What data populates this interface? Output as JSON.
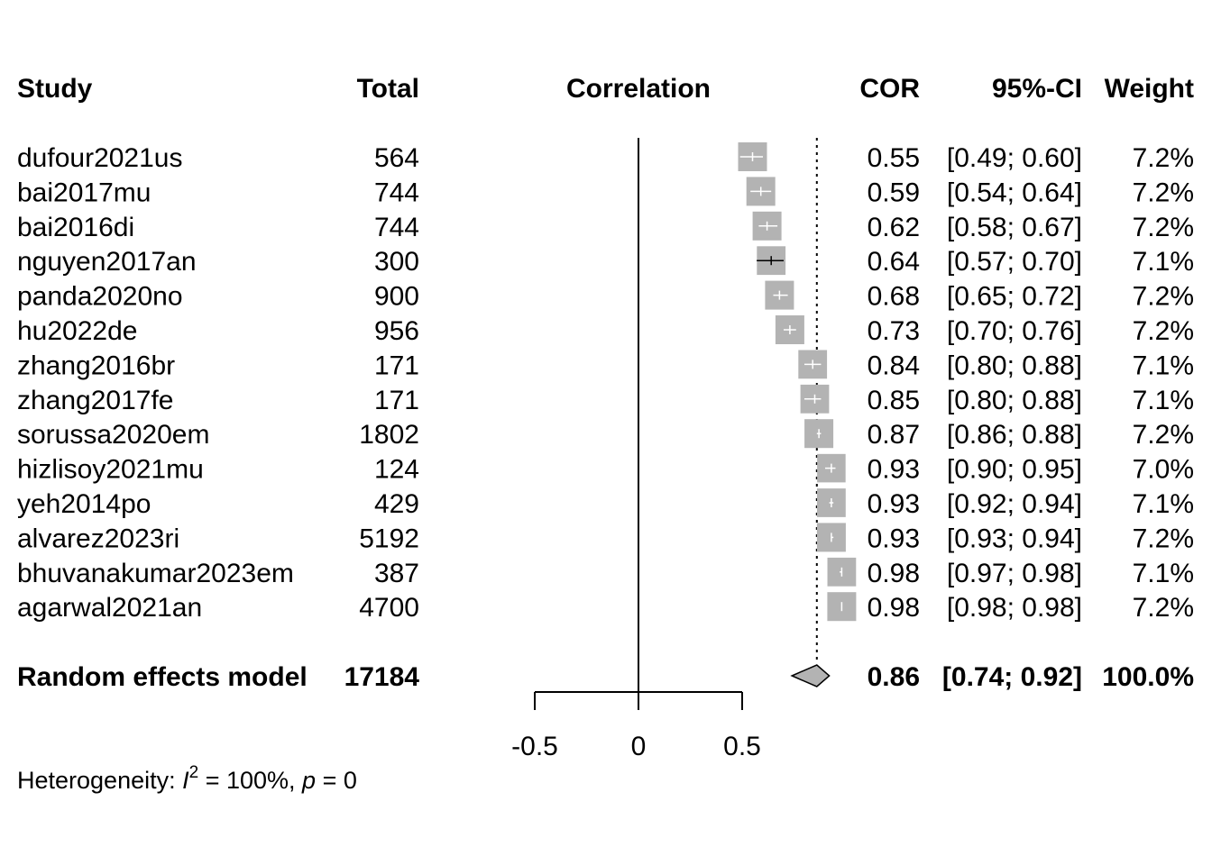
{
  "chart_data": {
    "type": "forest",
    "headers": {
      "study": "Study",
      "total": "Total",
      "plot": "Correlation",
      "effect": "COR",
      "ci": "95%-CI",
      "weight": "Weight"
    },
    "null_value": 0,
    "xlim": [
      -0.5,
      0.5
    ],
    "x_ticks": [
      -0.5,
      0,
      0.5
    ],
    "x_tick_labels": [
      "-0.5",
      "0",
      "0.5"
    ],
    "studies": [
      {
        "study": "dufour2021us",
        "total": "564",
        "cor": 0.55,
        "lower": 0.49,
        "upper": 0.6,
        "cor_label": "0.55",
        "ci_label": "[0.49; 0.60]",
        "weight": 7.2,
        "weight_label": "7.2%"
      },
      {
        "study": "bai2017mu",
        "total": "744",
        "cor": 0.59,
        "lower": 0.54,
        "upper": 0.64,
        "cor_label": "0.59",
        "ci_label": "[0.54; 0.64]",
        "weight": 7.2,
        "weight_label": "7.2%"
      },
      {
        "study": "bai2016di",
        "total": "744",
        "cor": 0.62,
        "lower": 0.58,
        "upper": 0.67,
        "cor_label": "0.62",
        "ci_label": "[0.58; 0.67]",
        "weight": 7.2,
        "weight_label": "7.2%"
      },
      {
        "study": "nguyen2017an",
        "total": "300",
        "cor": 0.64,
        "lower": 0.57,
        "upper": 0.7,
        "cor_label": "0.64",
        "ci_label": "[0.57; 0.70]",
        "weight": 7.1,
        "weight_label": "7.1%"
      },
      {
        "study": "panda2020no",
        "total": "900",
        "cor": 0.68,
        "lower": 0.65,
        "upper": 0.72,
        "cor_label": "0.68",
        "ci_label": "[0.65; 0.72]",
        "weight": 7.2,
        "weight_label": "7.2%"
      },
      {
        "study": "hu2022de",
        "total": "956",
        "cor": 0.73,
        "lower": 0.7,
        "upper": 0.76,
        "cor_label": "0.73",
        "ci_label": "[0.70; 0.76]",
        "weight": 7.2,
        "weight_label": "7.2%"
      },
      {
        "study": "zhang2016br",
        "total": "171",
        "cor": 0.84,
        "lower": 0.8,
        "upper": 0.88,
        "cor_label": "0.84",
        "ci_label": "[0.80; 0.88]",
        "weight": 7.1,
        "weight_label": "7.1%"
      },
      {
        "study": "zhang2017fe",
        "total": "171",
        "cor": 0.85,
        "lower": 0.8,
        "upper": 0.88,
        "cor_label": "0.85",
        "ci_label": "[0.80; 0.88]",
        "weight": 7.1,
        "weight_label": "7.1%"
      },
      {
        "study": "sorussa2020em",
        "total": "1802",
        "cor": 0.87,
        "lower": 0.86,
        "upper": 0.88,
        "cor_label": "0.87",
        "ci_label": "[0.86; 0.88]",
        "weight": 7.2,
        "weight_label": "7.2%"
      },
      {
        "study": "hizlisoy2021mu",
        "total": "124",
        "cor": 0.93,
        "lower": 0.9,
        "upper": 0.95,
        "cor_label": "0.93",
        "ci_label": "[0.90; 0.95]",
        "weight": 7.0,
        "weight_label": "7.0%"
      },
      {
        "study": "yeh2014po",
        "total": "429",
        "cor": 0.93,
        "lower": 0.92,
        "upper": 0.94,
        "cor_label": "0.93",
        "ci_label": "[0.92; 0.94]",
        "weight": 7.1,
        "weight_label": "7.1%"
      },
      {
        "study": "alvarez2023ri",
        "total": "5192",
        "cor": 0.93,
        "lower": 0.93,
        "upper": 0.94,
        "cor_label": "0.93",
        "ci_label": "[0.93; 0.94]",
        "weight": 7.2,
        "weight_label": "7.2%"
      },
      {
        "study": "bhuvanakumar2023em",
        "total": "387",
        "cor": 0.98,
        "lower": 0.97,
        "upper": 0.98,
        "cor_label": "0.98",
        "ci_label": "[0.97; 0.98]",
        "weight": 7.1,
        "weight_label": "7.1%"
      },
      {
        "study": "agarwal2021an",
        "total": "4700",
        "cor": 0.98,
        "lower": 0.98,
        "upper": 0.98,
        "cor_label": "0.98",
        "ci_label": "[0.98; 0.98]",
        "weight": 7.2,
        "weight_label": "7.2%"
      }
    ],
    "pooled": {
      "study": "Random effects model",
      "total": "17184",
      "cor": 0.86,
      "lower": 0.74,
      "upper": 0.92,
      "cor_label": "0.86",
      "ci_label": "[0.74; 0.92]",
      "weight_label": "100.0%"
    },
    "heterogeneity": {
      "prefix": "Heterogeneity: ",
      "i_symbol": "I",
      "i_sup": "2",
      "i_value": " = 100%, ",
      "p_symbol": "p",
      "p_value": " = 0"
    },
    "colors": {
      "square_fill": "#b3b3b3",
      "diamond_fill": "#b3b3b3",
      "ci_line_inside": "#ffffff",
      "ci_line_outside": "#000000",
      "axis": "#000000"
    }
  }
}
